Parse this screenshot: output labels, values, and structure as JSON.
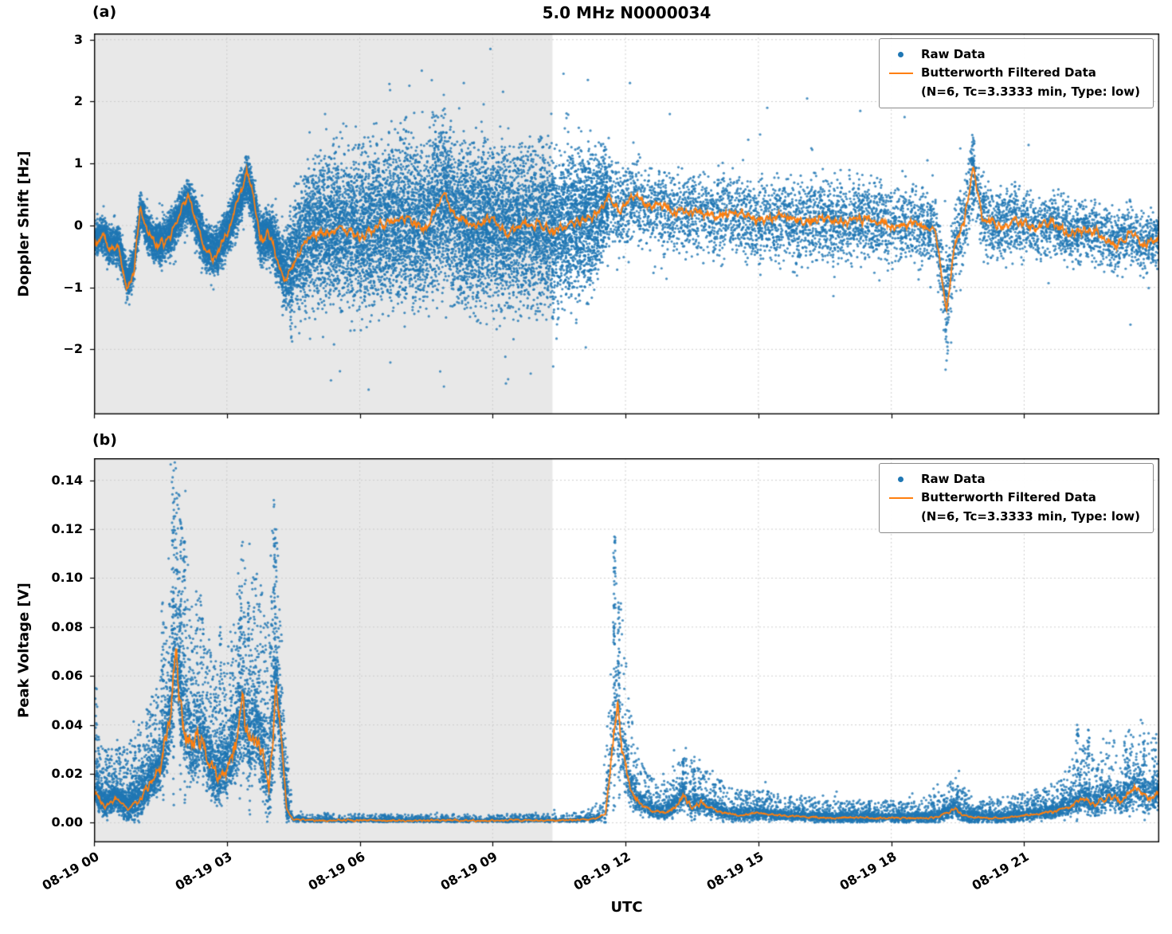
{
  "figure": {
    "title": "5.0 MHz N0000034",
    "panel_a_label": "(a)",
    "panel_b_label": "(b)"
  },
  "legend": {
    "raw_label": "Raw Data",
    "filtered_label": "Butterworth Filtered Data",
    "filtered_sublabel": "(N=6, Tc=3.3333 min, Type: low)"
  },
  "colors": {
    "raw": "#1f77b4",
    "filtered": "#ff7f0e",
    "shade": "#e8e8e8"
  },
  "time_axis": {
    "xlabel": "UTC",
    "xlim": [
      0,
      24.05
    ],
    "ticks": [
      {
        "t": 0,
        "label": "08-19 00"
      },
      {
        "t": 3,
        "label": "08-19 03"
      },
      {
        "t": 6,
        "label": "08-19 06"
      },
      {
        "t": 9,
        "label": "08-19 09"
      },
      {
        "t": 12,
        "label": "08-19 12"
      },
      {
        "t": 15,
        "label": "08-19 15"
      },
      {
        "t": 18,
        "label": "08-19 18"
      },
      {
        "t": 21,
        "label": "08-19 21"
      }
    ]
  },
  "chart_data": [
    {
      "type": "scatter+line",
      "panel": "a",
      "title": "5.0 MHz N0000034",
      "ylabel": "Doppler Shift [Hz]",
      "ylim": [
        -3.05,
        3.1
      ],
      "yticks": [
        {
          "v": 3,
          "label": "3"
        },
        {
          "v": 2,
          "label": "2"
        },
        {
          "v": 1,
          "label": "1"
        },
        {
          "v": 0,
          "label": "0"
        },
        {
          "v": -1,
          "label": "−1"
        },
        {
          "v": -2,
          "label": "−2"
        }
      ],
      "series": [
        {
          "name": "Raw Data",
          "type": "scatter"
        },
        {
          "name": "Butterworth Filtered Data (N=6, Tc=3.3333 min, Type: low)",
          "type": "line"
        }
      ],
      "shade_region": [
        0,
        10.35
      ],
      "filtered_anchors": [
        [
          0,
          -0.3
        ],
        [
          0.2,
          -0.15
        ],
        [
          0.35,
          -0.4
        ],
        [
          0.55,
          -0.35
        ],
        [
          0.75,
          -1.05
        ],
        [
          0.9,
          -0.75
        ],
        [
          1.05,
          0.3
        ],
        [
          1.2,
          -0.1
        ],
        [
          1.4,
          -0.35
        ],
        [
          1.6,
          -0.25
        ],
        [
          1.8,
          -0.05
        ],
        [
          2.0,
          0.3
        ],
        [
          2.15,
          0.45
        ],
        [
          2.3,
          0.1
        ],
        [
          2.5,
          -0.35
        ],
        [
          2.7,
          -0.55
        ],
        [
          2.9,
          -0.3
        ],
        [
          3.1,
          0.05
        ],
        [
          3.3,
          0.5
        ],
        [
          3.45,
          0.9
        ],
        [
          3.6,
          0.45
        ],
        [
          3.75,
          -0.25
        ],
        [
          3.9,
          -0.15
        ],
        [
          4.05,
          -0.3
        ],
        [
          4.3,
          -0.9
        ],
        [
          4.5,
          -0.6
        ],
        [
          4.7,
          -0.35
        ],
        [
          5.0,
          -0.15
        ],
        [
          5.5,
          -0.05
        ],
        [
          6.0,
          -0.15
        ],
        [
          6.5,
          0.0
        ],
        [
          7.0,
          0.1
        ],
        [
          7.5,
          -0.05
        ],
        [
          7.9,
          0.55
        ],
        [
          8.1,
          0.2
        ],
        [
          8.5,
          0.0
        ],
        [
          9.0,
          0.1
        ],
        [
          9.3,
          -0.15
        ],
        [
          9.7,
          0.05
        ],
        [
          10.0,
          0.0
        ],
        [
          10.4,
          -0.1
        ],
        [
          10.8,
          0.05
        ],
        [
          11.2,
          0.1
        ],
        [
          11.6,
          0.45
        ],
        [
          11.9,
          0.25
        ],
        [
          12.2,
          0.5
        ],
        [
          12.5,
          0.3
        ],
        [
          12.8,
          0.35
        ],
        [
          13.1,
          0.2
        ],
        [
          13.5,
          0.25
        ],
        [
          14.0,
          0.15
        ],
        [
          14.5,
          0.2
        ],
        [
          15.0,
          0.1
        ],
        [
          15.5,
          0.15
        ],
        [
          16.0,
          0.05
        ],
        [
          16.5,
          0.1
        ],
        [
          17.0,
          0.05
        ],
        [
          17.5,
          0.1
        ],
        [
          18.0,
          0.0
        ],
        [
          18.5,
          0.05
        ],
        [
          19.0,
          -0.1
        ],
        [
          19.25,
          -1.4
        ],
        [
          19.45,
          -0.25
        ],
        [
          19.65,
          0.1
        ],
        [
          19.85,
          0.95
        ],
        [
          20.05,
          0.15
        ],
        [
          20.4,
          0.0
        ],
        [
          20.8,
          0.1
        ],
        [
          21.2,
          -0.05
        ],
        [
          21.6,
          0.05
        ],
        [
          22.0,
          -0.15
        ],
        [
          22.4,
          -0.05
        ],
        [
          22.8,
          -0.2
        ],
        [
          23.1,
          -0.35
        ],
        [
          23.4,
          -0.1
        ],
        [
          23.7,
          -0.35
        ],
        [
          24.05,
          -0.2
        ]
      ],
      "raw_spread": [
        [
          0,
          0.35
        ],
        [
          1,
          0.4
        ],
        [
          2,
          0.45
        ],
        [
          3,
          0.5
        ],
        [
          3.6,
          0.5
        ],
        [
          4.2,
          0.6
        ],
        [
          4.5,
          1.1
        ],
        [
          5,
          1.55
        ],
        [
          6,
          1.65
        ],
        [
          7,
          1.7
        ],
        [
          8,
          1.7
        ],
        [
          9,
          1.7
        ],
        [
          10,
          1.65
        ],
        [
          11,
          1.6
        ],
        [
          11.5,
          1.2
        ],
        [
          11.8,
          0.85
        ],
        [
          12.5,
          0.8
        ],
        [
          13.5,
          0.85
        ],
        [
          14.5,
          0.9
        ],
        [
          15.5,
          0.95
        ],
        [
          16.5,
          0.9
        ],
        [
          17.5,
          0.85
        ],
        [
          18.5,
          0.8
        ],
        [
          19.3,
          0.9
        ],
        [
          20,
          0.8
        ],
        [
          21,
          0.7
        ],
        [
          22,
          0.65
        ],
        [
          23,
          0.7
        ],
        [
          24.05,
          0.65
        ]
      ],
      "raw_t_regions": [
        [
          0.03,
          4.3,
          0.3
        ],
        [
          4.3,
          11.6,
          0.45
        ],
        [
          11.6,
          24.05,
          0.25
        ]
      ],
      "raw_n_points": 22000,
      "raw_outlier_columns": [
        [
          19.25,
          -2.35,
          -0.3,
          35
        ],
        [
          19.85,
          0.3,
          1.5,
          30
        ],
        [
          4.45,
          -1.9,
          -0.6,
          25
        ]
      ],
      "raw_outliers": [
        [
          8.95,
          2.85
        ],
        [
          7.4,
          2.5
        ],
        [
          10.6,
          2.45
        ],
        [
          11.15,
          2.35
        ],
        [
          12.1,
          2.3
        ],
        [
          6.2,
          -2.65
        ],
        [
          5.35,
          -2.5
        ],
        [
          7.9,
          -2.6
        ],
        [
          9.3,
          -2.55
        ],
        [
          13.0,
          1.8
        ],
        [
          16.1,
          2.05
        ],
        [
          18.3,
          1.75
        ],
        [
          15.2,
          1.9
        ],
        [
          17.3,
          1.85
        ],
        [
          21.1,
          1.3
        ],
        [
          23.4,
          -1.6
        ]
      ]
    },
    {
      "type": "scatter+line",
      "panel": "b",
      "ylabel": "Peak Voltage [V]",
      "ylim": [
        -0.008,
        0.149
      ],
      "yticks": [
        {
          "v": 0.14,
          "label": "0.14"
        },
        {
          "v": 0.12,
          "label": "0.12"
        },
        {
          "v": 0.1,
          "label": "0.10"
        },
        {
          "v": 0.08,
          "label": "0.08"
        },
        {
          "v": 0.06,
          "label": "0.06"
        },
        {
          "v": 0.04,
          "label": "0.04"
        },
        {
          "v": 0.02,
          "label": "0.02"
        },
        {
          "v": 0.0,
          "label": "0.00"
        }
      ],
      "series": [
        {
          "name": "Raw Data",
          "type": "scatter"
        },
        {
          "name": "Butterworth Filtered Data (N=6, Tc=3.3333 min, Type: low)",
          "type": "line"
        }
      ],
      "shade_region": [
        0,
        10.35
      ],
      "filtered_anchors": [
        [
          0,
          0.013
        ],
        [
          0.25,
          0.007
        ],
        [
          0.5,
          0.01
        ],
        [
          0.75,
          0.006
        ],
        [
          1.0,
          0.009
        ],
        [
          1.25,
          0.016
        ],
        [
          1.5,
          0.022
        ],
        [
          1.7,
          0.04
        ],
        [
          1.85,
          0.07
        ],
        [
          2.0,
          0.042
        ],
        [
          2.2,
          0.03
        ],
        [
          2.4,
          0.036
        ],
        [
          2.6,
          0.024
        ],
        [
          2.8,
          0.018
        ],
        [
          3.0,
          0.022
        ],
        [
          3.2,
          0.032
        ],
        [
          3.35,
          0.046
        ],
        [
          3.5,
          0.03
        ],
        [
          3.65,
          0.04
        ],
        [
          3.8,
          0.028
        ],
        [
          3.95,
          0.014
        ],
        [
          4.1,
          0.055
        ],
        [
          4.2,
          0.038
        ],
        [
          4.35,
          0.006
        ],
        [
          4.5,
          0.0012
        ],
        [
          5.0,
          0.001
        ],
        [
          6.0,
          0.001
        ],
        [
          7.0,
          0.0009
        ],
        [
          8.0,
          0.0009
        ],
        [
          9.0,
          0.0009
        ],
        [
          10.0,
          0.001
        ],
        [
          10.8,
          0.001
        ],
        [
          11.3,
          0.0015
        ],
        [
          11.55,
          0.004
        ],
        [
          11.7,
          0.03
        ],
        [
          11.78,
          0.046
        ],
        [
          11.95,
          0.028
        ],
        [
          12.1,
          0.014
        ],
        [
          12.3,
          0.008
        ],
        [
          12.6,
          0.005
        ],
        [
          12.9,
          0.004
        ],
        [
          13.15,
          0.007
        ],
        [
          13.3,
          0.012
        ],
        [
          13.5,
          0.006
        ],
        [
          13.7,
          0.008
        ],
        [
          13.9,
          0.006
        ],
        [
          14.2,
          0.004
        ],
        [
          14.6,
          0.003
        ],
        [
          15.0,
          0.004
        ],
        [
          15.4,
          0.003
        ],
        [
          16.0,
          0.0025
        ],
        [
          16.5,
          0.002
        ],
        [
          17.0,
          0.002
        ],
        [
          17.5,
          0.002
        ],
        [
          18.0,
          0.002
        ],
        [
          18.5,
          0.002
        ],
        [
          19.0,
          0.002
        ],
        [
          19.45,
          0.006
        ],
        [
          19.6,
          0.003
        ],
        [
          20.0,
          0.002
        ],
        [
          20.5,
          0.002
        ],
        [
          21.0,
          0.003
        ],
        [
          21.5,
          0.004
        ],
        [
          22.0,
          0.006
        ],
        [
          22.3,
          0.01
        ],
        [
          22.6,
          0.007
        ],
        [
          22.9,
          0.011
        ],
        [
          23.2,
          0.009
        ],
        [
          23.5,
          0.014
        ],
        [
          23.8,
          0.01
        ],
        [
          24.05,
          0.012
        ]
      ],
      "raw_spread": [
        [
          0,
          0.01
        ],
        [
          0.5,
          0.008
        ],
        [
          1,
          0.012
        ],
        [
          1.5,
          0.014
        ],
        [
          1.8,
          0.035
        ],
        [
          2.1,
          0.028
        ],
        [
          2.5,
          0.02
        ],
        [
          3,
          0.018
        ],
        [
          3.35,
          0.028
        ],
        [
          3.7,
          0.024
        ],
        [
          4.05,
          0.035
        ],
        [
          4.3,
          0.012
        ],
        [
          4.5,
          0.0015
        ],
        [
          5,
          0.0012
        ],
        [
          6,
          0.001
        ],
        [
          7,
          0.001
        ],
        [
          8,
          0.001
        ],
        [
          9,
          0.001
        ],
        [
          10,
          0.001
        ],
        [
          11,
          0.0012
        ],
        [
          11.4,
          0.003
        ],
        [
          11.6,
          0.012
        ],
        [
          11.75,
          0.035
        ],
        [
          11.95,
          0.02
        ],
        [
          12.2,
          0.009
        ],
        [
          12.6,
          0.005
        ],
        [
          13,
          0.005
        ],
        [
          13.3,
          0.009
        ],
        [
          13.8,
          0.006
        ],
        [
          14.5,
          0.004
        ],
        [
          15.5,
          0.0035
        ],
        [
          16.5,
          0.003
        ],
        [
          17.5,
          0.0028
        ],
        [
          18.5,
          0.0028
        ],
        [
          19.5,
          0.005
        ],
        [
          20,
          0.003
        ],
        [
          21,
          0.0035
        ],
        [
          21.8,
          0.005
        ],
        [
          22.3,
          0.009
        ],
        [
          23,
          0.009
        ],
        [
          23.6,
          0.012
        ],
        [
          24.05,
          0.01
        ]
      ],
      "raw_t_regions": [
        [
          0.03,
          4.4,
          0.38
        ],
        [
          4.4,
          11.55,
          0.14
        ],
        [
          11.55,
          24.05,
          0.48
        ]
      ],
      "raw_n_points": 14000,
      "raw_spike_columns": [
        [
          0.05,
          0.055,
          15
        ],
        [
          1.55,
          0.09,
          25
        ],
        [
          1.78,
          0.144,
          45
        ],
        [
          1.95,
          0.124,
          40
        ],
        [
          2.05,
          0.115,
          30
        ],
        [
          2.85,
          0.08,
          25
        ],
        [
          3.3,
          0.095,
          35
        ],
        [
          3.5,
          0.09,
          30
        ],
        [
          4.08,
          0.12,
          40
        ],
        [
          11.75,
          0.117,
          60
        ],
        [
          11.85,
          0.09,
          40
        ],
        [
          13.3,
          0.026,
          25
        ],
        [
          13.55,
          0.022,
          20
        ],
        [
          19.5,
          0.015,
          18
        ],
        [
          22.2,
          0.04,
          20
        ],
        [
          22.45,
          0.038,
          18
        ],
        [
          23.3,
          0.03,
          15
        ],
        [
          23.7,
          0.033,
          15
        ],
        [
          23.95,
          0.03,
          12
        ]
      ]
    }
  ]
}
